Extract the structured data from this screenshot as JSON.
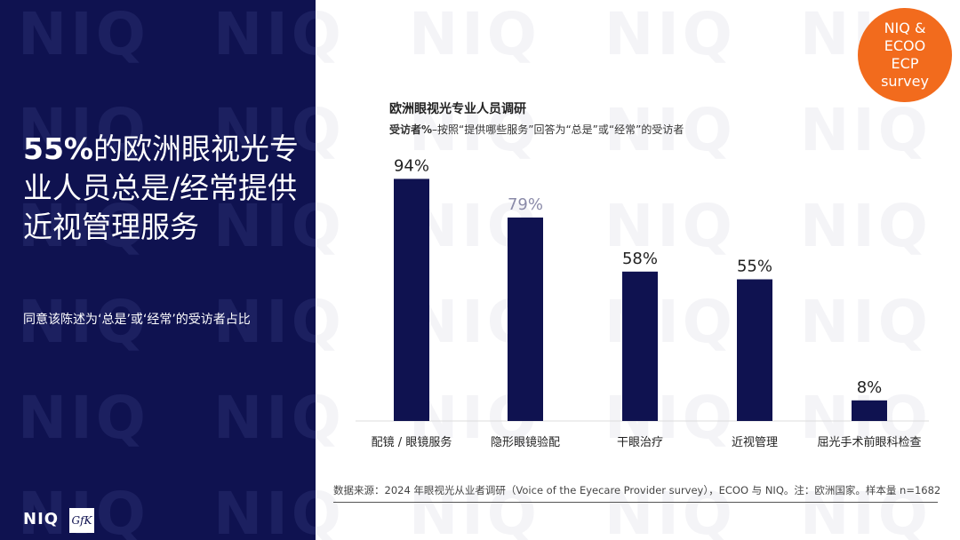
{
  "watermark_text": "NIQ",
  "headline": {
    "highlight": "55%",
    "rest": "的欧洲眼视光专业人员总是/经常提供近视管理服务"
  },
  "subheadline": "同意该陈述为‘总是’或‘经常’的受访者占比",
  "badge": {
    "lines": [
      "NIQ &",
      "ECOO",
      "ECP",
      "survey"
    ],
    "color": "#f26b1d"
  },
  "chart_data": {
    "type": "bar",
    "title": "欧洲眼视光专业人员调研",
    "subtitle_bold": "受访者%",
    "subtitle_rest": "–按照“提供哪些服务”回答为“总是”或“经常”的受访者",
    "categories": [
      "配镜 / 眼镜服务",
      "隐形眼镜验配",
      "干眼治疗",
      "近视管理",
      "屈光手术前眼科检查"
    ],
    "values": [
      94,
      79,
      58,
      55,
      8
    ],
    "value_labels": [
      "94%",
      "79%",
      "58%",
      "55%",
      "8%"
    ],
    "ylim": [
      0,
      100
    ],
    "grid": false,
    "bar_color": "#0f1250",
    "highlight_label_color": "#222222",
    "dim_label_color": "#8a8aa8",
    "dim_label_indices": [
      1
    ]
  },
  "source": "数据来源：2024 年眼视光从业者调研（Voice of the Eyecare Provider survey），ECOO 与 NIQ。注：欧洲国家。样本量 n=1682",
  "logos": {
    "niq": "NIQ",
    "gfk": "GfK"
  },
  "colors": {
    "navy": "#0f1250",
    "orange": "#f26b1d"
  }
}
